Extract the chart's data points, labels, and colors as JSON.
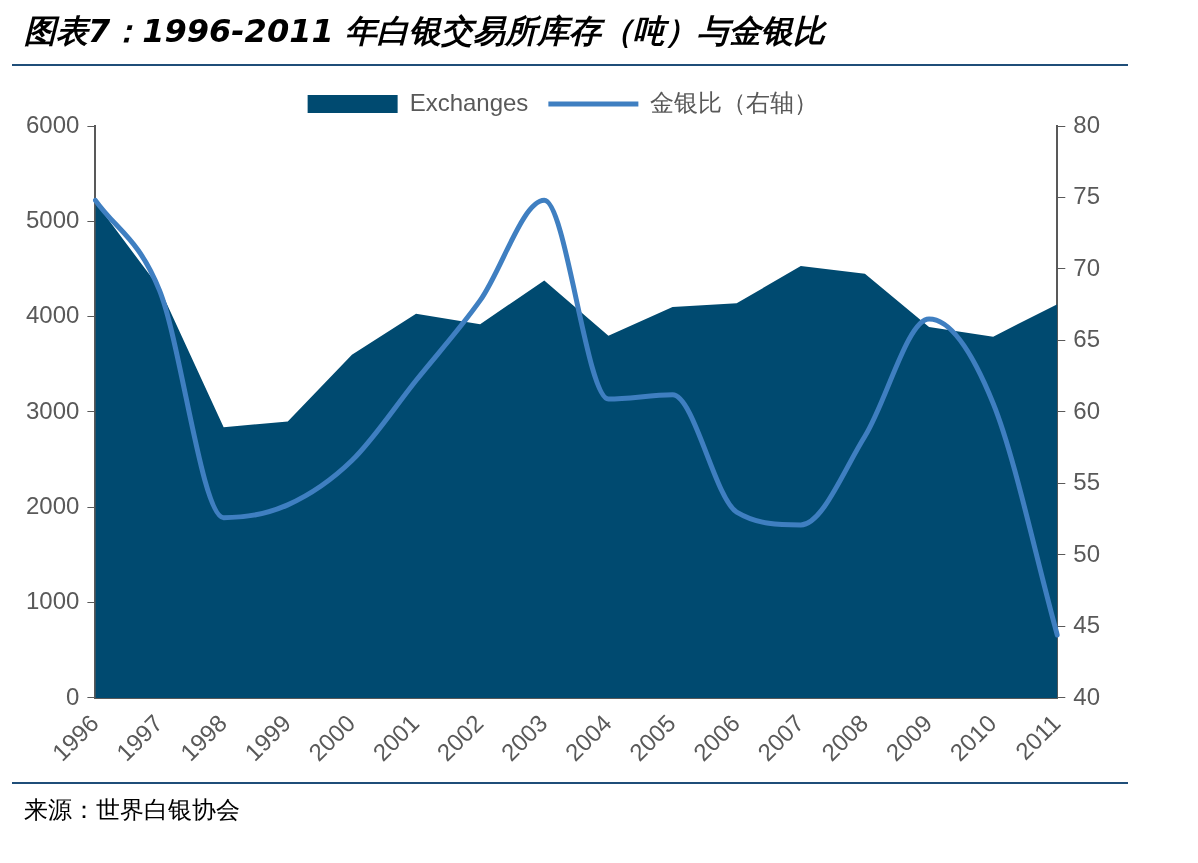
{
  "chart_data": {
    "type": "area",
    "title": "图表7：1996-2011 年白银交易所库存（吨）与金银比",
    "categories": [
      "1996",
      "1997",
      "1998",
      "1999",
      "2000",
      "2001",
      "2002",
      "2003",
      "2004",
      "2005",
      "2006",
      "2007",
      "2008",
      "2009",
      "2010",
      "2011"
    ],
    "series": [
      {
        "name": "Exchanges",
        "color": "#004a70",
        "values": [
          5200,
          4300,
          2840,
          2900,
          3600,
          4030,
          3920,
          4380,
          3800,
          4100,
          4140,
          4530,
          4450,
          3890,
          3790,
          4130
        ]
      },
      {
        "name": "金银比（右轴）",
        "type": "line",
        "axis": "y2",
        "color": "#3f7fc1",
        "values": [
          74.8,
          68.5,
          52.6,
          53.5,
          56.6,
          62.2,
          67.8,
          74.8,
          60.9,
          61.2,
          53.0,
          52.1,
          58.3,
          66.5,
          60.6,
          44.4
        ]
      }
    ],
    "ylim": [
      0,
      6000
    ],
    "yticks": [
      0,
      1000,
      2000,
      3000,
      4000,
      5000,
      6000
    ],
    "y2lim": [
      40,
      80
    ],
    "y2ticks": [
      40,
      45,
      50,
      55,
      60,
      65,
      70,
      75,
      80
    ],
    "grid": false,
    "legend": "top",
    "marker": "none",
    "line_style": "solid",
    "annotations": [
      "来源：世界白银协会"
    ]
  }
}
